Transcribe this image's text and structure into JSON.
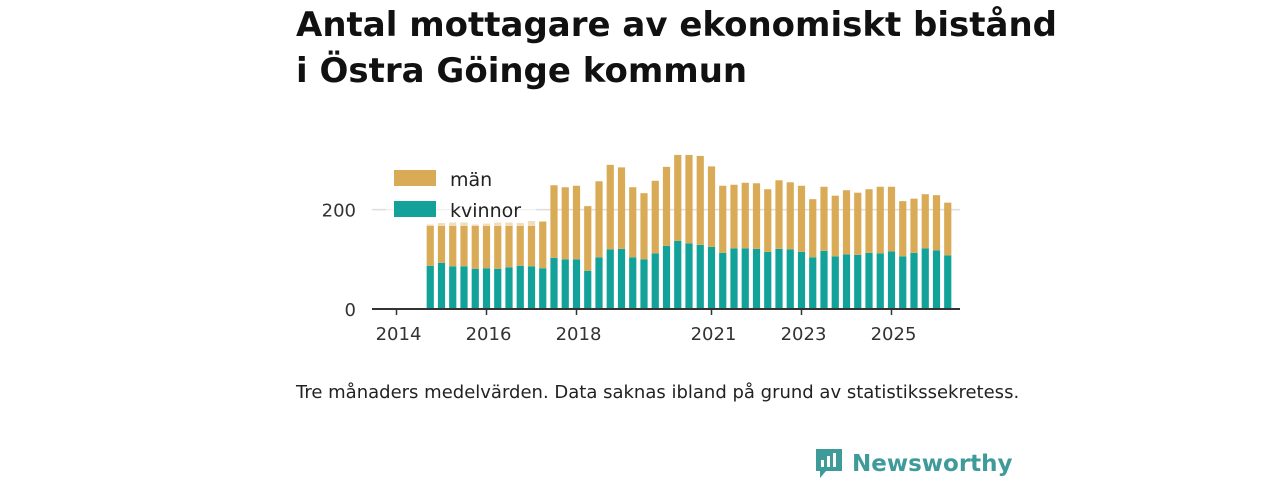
{
  "title": {
    "line1": "Antal mottagare av ekonomiskt bistånd",
    "line2": "i Östra Göinge kommun"
  },
  "caption": "Tre månaders medelvärden. Data saknas ibland på grund av statistikssekretess.",
  "brand": {
    "name": "Newsworthy",
    "logo_icon": "bar-chart-speech-bubble-icon"
  },
  "colors": {
    "men": "#d9ab56",
    "women": "#12a29a",
    "brand": "#3f9a9a",
    "axis": "#333333",
    "grid": "#dddddd"
  },
  "chart_data": {
    "type": "bar",
    "stacked": true,
    "title": "Antal mottagare av ekonomiskt bistånd i Östra Göinge kommun",
    "xlabel": "",
    "ylabel": "",
    "ylim": [
      0,
      330
    ],
    "yticks": [
      0,
      200
    ],
    "grid": true,
    "legend_position": "top-left",
    "xticks": [
      {
        "label": "2014",
        "index": 0
      },
      {
        "label": "2016",
        "index": 8
      },
      {
        "label": "2018",
        "index": 16
      },
      {
        "label": "2021",
        "index": 28
      },
      {
        "label": "2023",
        "index": 36
      },
      {
        "label": "2025",
        "index": 44
      }
    ],
    "categories": [
      "2014-Q1",
      "2014-Q2",
      "2014-Q3",
      "2014-Q4",
      "2015-Q1",
      "2015-Q2",
      "2015-Q3",
      "2015-Q4",
      "2016-Q1",
      "2016-Q2",
      "2016-Q3",
      "2016-Q4",
      "2017-Q1",
      "2017-Q2",
      "2017-Q3",
      "2017-Q4",
      "2018-Q1",
      "2018-Q2",
      "2018-Q3",
      "2018-Q4",
      "2019-Q1",
      "2019-Q2",
      "2019-Q3",
      "2019-Q4",
      "2020-Q1",
      "2020-Q2",
      "2020-Q3",
      "2020-Q4",
      "2021-Q1",
      "2021-Q2",
      "2021-Q3",
      "2021-Q4",
      "2022-Q1",
      "2022-Q2",
      "2022-Q3",
      "2022-Q4",
      "2023-Q1",
      "2023-Q2",
      "2023-Q3",
      "2023-Q4",
      "2024-Q1",
      "2024-Q2",
      "2024-Q3",
      "2024-Q4",
      "2025-Q1",
      "2025-Q2",
      "2025-Q3",
      "2025-Q4",
      "2026-Q1",
      "2026-Q2"
    ],
    "series": [
      {
        "name": "kvinnor",
        "values": [
          null,
          null,
          null,
          87,
          93,
          86,
          86,
          81,
          82,
          81,
          84,
          87,
          86,
          82,
          103,
          100,
          100,
          77,
          104,
          120,
          121,
          104,
          100,
          112,
          127,
          137,
          132,
          129,
          125,
          113,
          122,
          122,
          121,
          115,
          121,
          120,
          115,
          104,
          117,
          106,
          110,
          109,
          113,
          112,
          116,
          106,
          113,
          122,
          118,
          108
        ]
      },
      {
        "name": "män",
        "values": [
          null,
          null,
          null,
          83,
          80,
          88,
          88,
          89,
          90,
          93,
          90,
          86,
          91,
          94,
          146,
          145,
          148,
          130,
          153,
          170,
          164,
          141,
          133,
          146,
          159,
          173,
          178,
          179,
          162,
          135,
          128,
          132,
          132,
          126,
          138,
          135,
          133,
          117,
          129,
          122,
          129,
          125,
          128,
          134,
          130,
          111,
          109,
          109,
          111,
          106
        ]
      }
    ]
  }
}
